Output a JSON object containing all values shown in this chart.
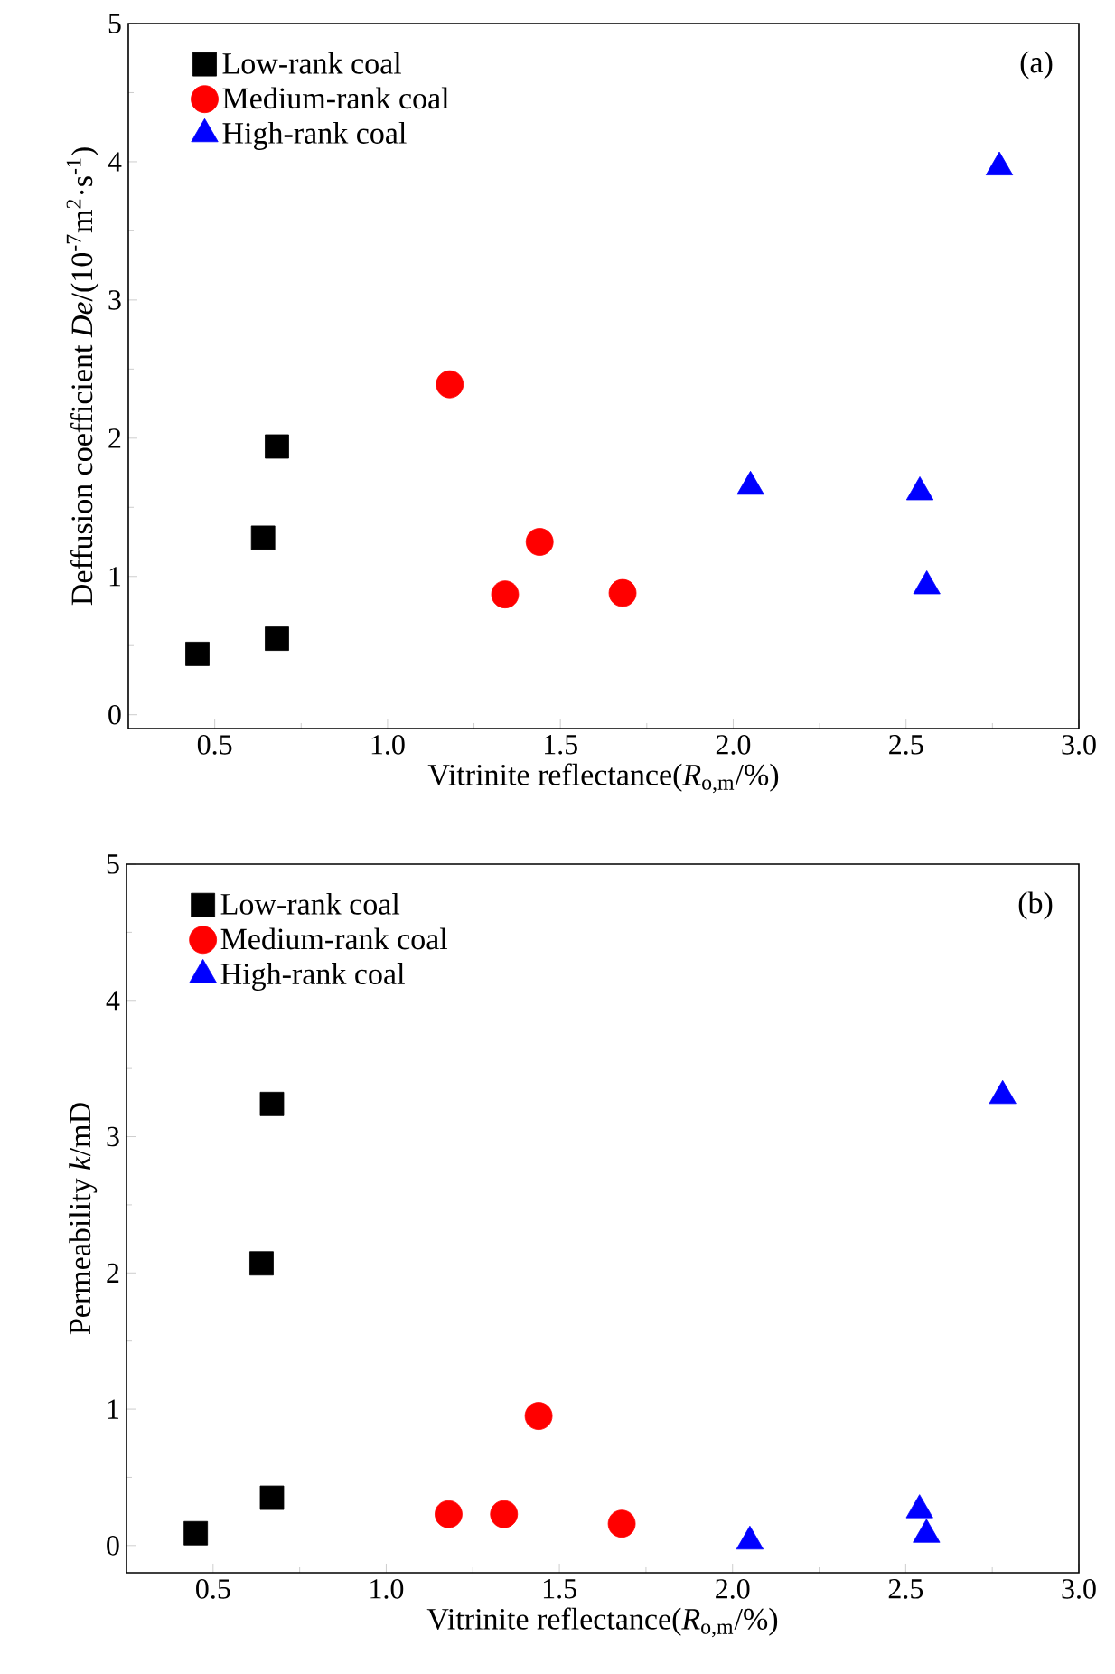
{
  "chart_data": [
    {
      "type": "scatter",
      "xlabel": "Vitrinite reflectance(*R*$_{o,m}$/%)",
      "ylabel": "Deffusion coefficient *De*/(10$^{-7}$m$^{2}$·s$^{-1}$)",
      "annotations": [
        "(a)"
      ],
      "xlim": [
        0.25,
        3.0
      ],
      "ylim": [
        -0.1,
        5
      ],
      "xticks": [
        0.5,
        {
          "value": 1,
          "label": "1.0"
        },
        1.5,
        {
          "value": 2,
          "label": "2.0"
        },
        2.5,
        {
          "value": 3,
          "label": "3.0"
        }
      ],
      "yticks": [
        0,
        1,
        2,
        3,
        4,
        5
      ],
      "legend": "top left",
      "series": [
        {
          "name": "Low-rank coal",
          "color": "#000000",
          "marker": "square",
          "x": [
            0.45,
            0.64,
            0.68,
            0.68
          ],
          "values": [
            0.44,
            1.28,
            1.94,
            0.55
          ]
        },
        {
          "name": "Medium-rank coal",
          "color": "#ff0000",
          "marker": "circle",
          "x": [
            1.18,
            1.44,
            1.34,
            1.68
          ],
          "values": [
            2.39,
            1.25,
            0.87,
            0.88
          ]
        },
        {
          "name": "High-rank coal",
          "color": "#0000ff",
          "marker": "triangle",
          "x": [
            2.05,
            2.54,
            2.56,
            2.77
          ],
          "values": [
            1.65,
            1.61,
            0.93,
            3.96
          ]
        }
      ]
    },
    {
      "type": "scatter",
      "xlabel": "Vitrinite reflectance(*R*$_{o,m}$/%)",
      "ylabel": "Permeability *k*/mD",
      "annotations": [
        "(b)"
      ],
      "xlim": [
        0.25,
        3.0
      ],
      "ylim": [
        -0.2,
        5
      ],
      "xticks": [
        0.5,
        {
          "value": 1,
          "label": "1.0"
        },
        1.5,
        {
          "value": 2,
          "label": "2.0"
        },
        2.5,
        {
          "value": 3,
          "label": "3.0"
        }
      ],
      "yticks": [
        0,
        1,
        2,
        3,
        4,
        5
      ],
      "legend": "top left",
      "series": [
        {
          "name": "Low-rank coal",
          "color": "#000000",
          "marker": "square",
          "x": [
            0.45,
            0.64,
            0.67,
            0.67
          ],
          "values": [
            0.09,
            2.07,
            3.24,
            0.35
          ]
        },
        {
          "name": "Medium-rank coal",
          "color": "#ff0000",
          "marker": "circle",
          "x": [
            1.18,
            1.34,
            1.44,
            1.68
          ],
          "values": [
            0.23,
            0.23,
            0.95,
            0.16
          ]
        },
        {
          "name": "High-rank coal",
          "color": "#0000ff",
          "marker": "triangle",
          "x": [
            2.05,
            2.54,
            2.56,
            2.78
          ],
          "values": [
            0.03,
            0.26,
            0.08,
            3.3
          ]
        }
      ]
    }
  ]
}
